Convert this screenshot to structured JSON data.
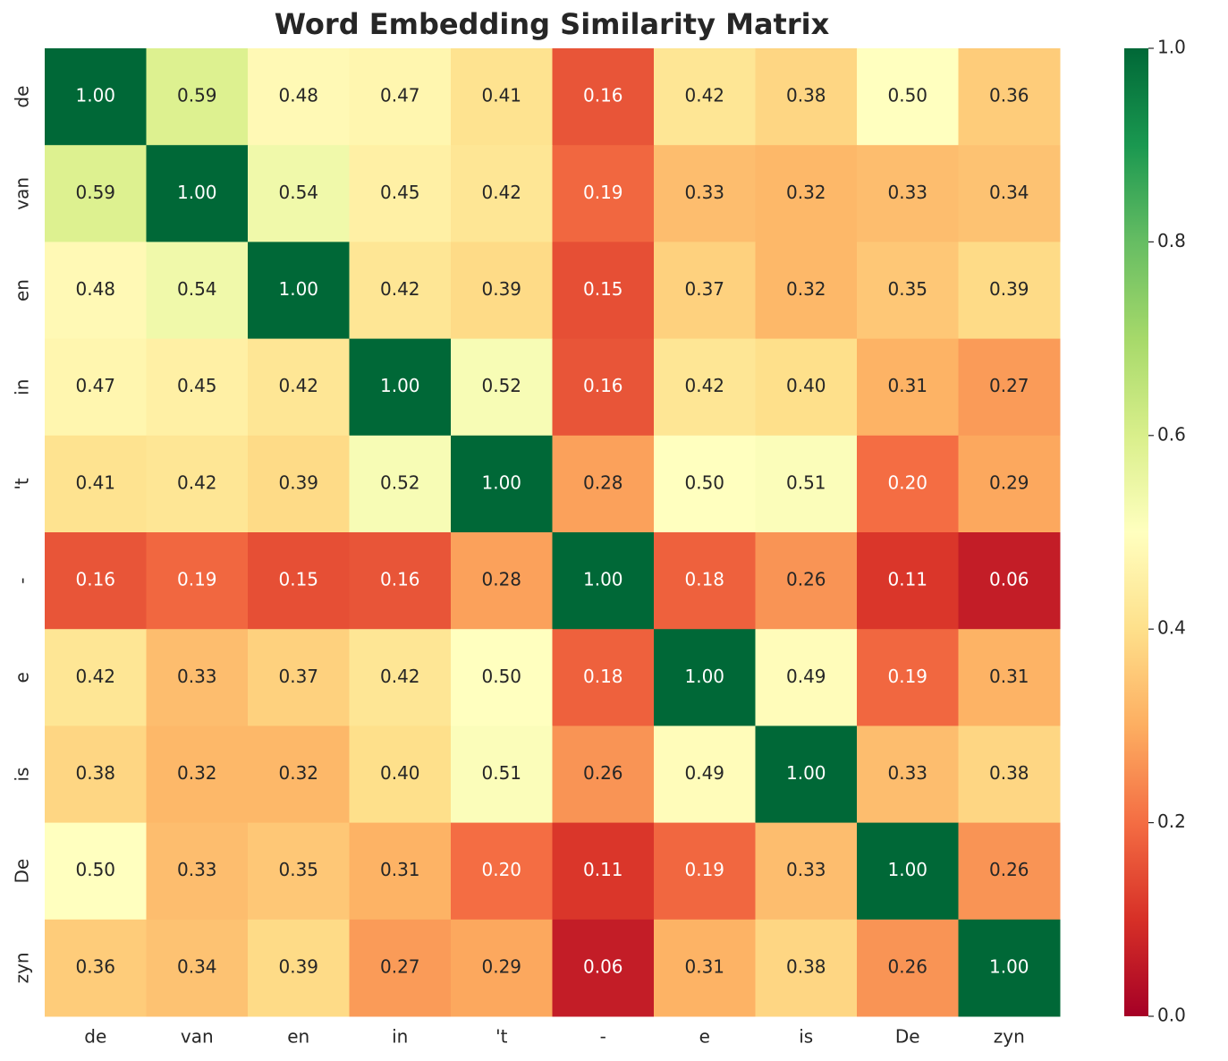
{
  "chart_data": {
    "type": "heatmap",
    "title": "Word Embedding Similarity Matrix",
    "x_categories": [
      "de",
      "van",
      "en",
      "in",
      "'t",
      "-",
      "e",
      "is",
      "De",
      "zyn"
    ],
    "y_categories": [
      "de",
      "van",
      "en",
      "in",
      "'t",
      "-",
      "e",
      "is",
      "De",
      "zyn"
    ],
    "values": [
      [
        1.0,
        0.59,
        0.48,
        0.47,
        0.41,
        0.16,
        0.42,
        0.38,
        0.5,
        0.36
      ],
      [
        0.59,
        1.0,
        0.54,
        0.45,
        0.42,
        0.19,
        0.33,
        0.32,
        0.33,
        0.34
      ],
      [
        0.48,
        0.54,
        1.0,
        0.42,
        0.39,
        0.15,
        0.37,
        0.32,
        0.35,
        0.39
      ],
      [
        0.47,
        0.45,
        0.42,
        1.0,
        0.52,
        0.16,
        0.42,
        0.4,
        0.31,
        0.27
      ],
      [
        0.41,
        0.42,
        0.39,
        0.52,
        1.0,
        0.28,
        0.5,
        0.51,
        0.2,
        0.29
      ],
      [
        0.16,
        0.19,
        0.15,
        0.16,
        0.28,
        1.0,
        0.18,
        0.26,
        0.11,
        0.06
      ],
      [
        0.42,
        0.33,
        0.37,
        0.42,
        0.5,
        0.18,
        1.0,
        0.49,
        0.19,
        0.31
      ],
      [
        0.38,
        0.32,
        0.32,
        0.4,
        0.51,
        0.26,
        0.49,
        1.0,
        0.33,
        0.38
      ],
      [
        0.5,
        0.33,
        0.35,
        0.31,
        0.2,
        0.11,
        0.19,
        0.33,
        1.0,
        0.26
      ],
      [
        0.36,
        0.34,
        0.39,
        0.27,
        0.29,
        0.06,
        0.31,
        0.38,
        0.26,
        1.0
      ]
    ],
    "value_labels": [
      [
        "1.00",
        "0.59",
        "0.48",
        "0.47",
        "0.41",
        "0.16",
        "0.42",
        "0.38",
        "0.50",
        "0.36"
      ],
      [
        "0.59",
        "1.00",
        "0.54",
        "0.45",
        "0.42",
        "0.19",
        "0.33",
        "0.32",
        "0.33",
        "0.34"
      ],
      [
        "0.48",
        "0.54",
        "1.00",
        "0.42",
        "0.39",
        "0.15",
        "0.37",
        "0.32",
        "0.35",
        "0.39"
      ],
      [
        "0.47",
        "0.45",
        "0.42",
        "1.00",
        "0.52",
        "0.16",
        "0.42",
        "0.40",
        "0.31",
        "0.27"
      ],
      [
        "0.41",
        "0.42",
        "0.39",
        "0.52",
        "1.00",
        "0.28",
        "0.50",
        "0.51",
        "0.20",
        "0.29"
      ],
      [
        "0.16",
        "0.19",
        "0.15",
        "0.16",
        "0.28",
        "1.00",
        "0.18",
        "0.26",
        "0.11",
        "0.06"
      ],
      [
        "0.42",
        "0.33",
        "0.37",
        "0.42",
        "0.50",
        "0.18",
        "1.00",
        "0.49",
        "0.19",
        "0.31"
      ],
      [
        "0.38",
        "0.32",
        "0.32",
        "0.40",
        "0.51",
        "0.26",
        "0.49",
        "1.00",
        "0.33",
        "0.38"
      ],
      [
        "0.50",
        "0.33",
        "0.35",
        "0.31",
        "0.20",
        "0.11",
        "0.19",
        "0.33",
        "1.00",
        "0.26"
      ],
      [
        "0.36",
        "0.34",
        "0.39",
        "0.27",
        "0.29",
        "0.06",
        "0.31",
        "0.38",
        "0.26",
        "1.00"
      ]
    ],
    "colormap": "RdYlGn",
    "clim": [
      0,
      1
    ],
    "cticks": [
      {
        "value": 0,
        "label": "0.0"
      },
      {
        "value": 0.2,
        "label": "0.2"
      },
      {
        "value": 0.4,
        "label": "0.4"
      },
      {
        "value": 0.6,
        "label": "0.6"
      },
      {
        "value": 0.8,
        "label": "0.8"
      },
      {
        "value": 1,
        "label": "1.0"
      }
    ]
  }
}
